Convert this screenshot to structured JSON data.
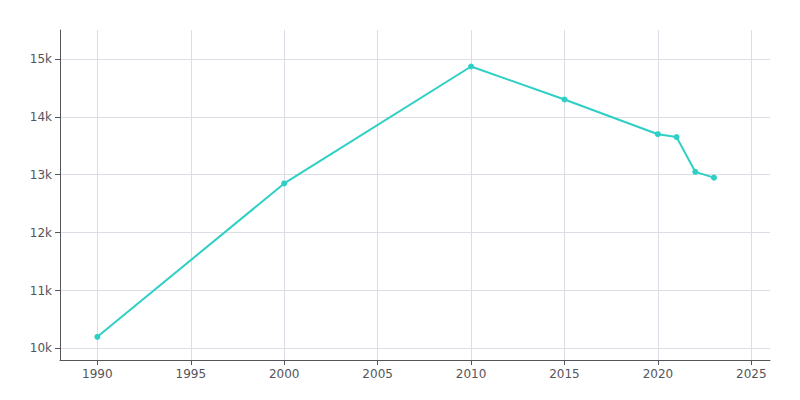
{
  "chart_data": {
    "type": "line",
    "x": [
      1990,
      2000,
      2010,
      2015,
      2020,
      2021,
      2022,
      2023
    ],
    "values": [
      10200,
      12850,
      14870,
      14300,
      13700,
      13650,
      13050,
      12950
    ],
    "color": "#2ecfc4",
    "marker": "circle",
    "xlim": [
      1988,
      2026
    ],
    "ylim": [
      9800,
      15500
    ],
    "xticks": [
      1990,
      1995,
      2000,
      2005,
      2010,
      2015,
      2020,
      2025
    ],
    "yticks": [
      {
        "value": 10000,
        "label": "10k"
      },
      {
        "value": 11000,
        "label": "11k"
      },
      {
        "value": 12000,
        "label": "12k"
      },
      {
        "value": 13000,
        "label": "13k"
      },
      {
        "value": 14000,
        "label": "14k"
      },
      {
        "value": 15000,
        "label": "15k"
      }
    ],
    "grid": true
  }
}
